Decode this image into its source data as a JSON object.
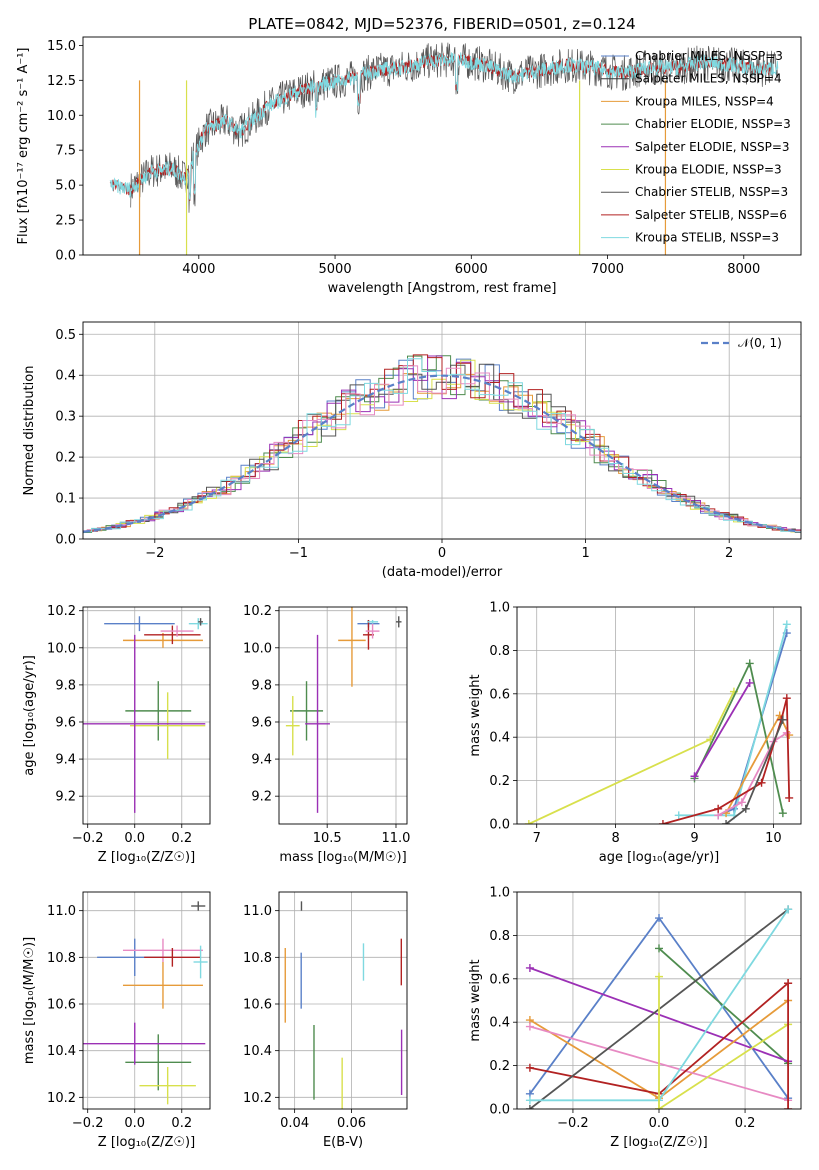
{
  "chart_data": [
    {
      "id": "spectrum",
      "type": "line",
      "title": "PLATE=0842, MJD=52376, FIBERID=0501, z=0.124",
      "xlabel": "wavelength [Angstrom, rest frame]",
      "ylabel": "Flux [fλ10⁻¹⁷ erg cm⁻² s⁻¹ A⁻¹]",
      "xlim": [
        3150,
        8420
      ],
      "ylim": [
        0,
        15.6
      ],
      "xticks": [
        "4000",
        "5000",
        "6000",
        "7000",
        "8000"
      ],
      "yticks": [
        "0.0",
        "2.5",
        "5.0",
        "7.5",
        "10.0",
        "12.5",
        "15.0"
      ],
      "legend_position": "upper-right",
      "legend": [
        {
          "label": "Chabrier MILES, NSSP=3",
          "color": "#5a80c8"
        },
        {
          "label": "Salpeter MILES, NSSP=4",
          "color": "#3a3a3a"
        },
        {
          "label": "Kroupa MILES, NSSP=4",
          "color": "#e69b3a"
        },
        {
          "label": "Chabrier ELODIE, NSSP=3",
          "color": "#4f8c4f"
        },
        {
          "label": "Salpeter ELODIE, NSSP=3",
          "color": "#9b30b5"
        },
        {
          "label": "Kroupa ELODIE, NSSP=3",
          "color": "#d8e04c"
        },
        {
          "label": "Chabrier STELIB, NSSP=3",
          "color": "#555555"
        },
        {
          "label": "Salpeter STELIB, NSSP=6",
          "color": "#b22222"
        },
        {
          "label": "Kroupa STELIB, NSSP=3",
          "color": "#7fd9e0"
        }
      ],
      "continuum": [
        [
          3350,
          5.0
        ],
        [
          3500,
          4.7
        ],
        [
          3650,
          6.0
        ],
        [
          3800,
          6.2
        ],
        [
          3900,
          5.5
        ],
        [
          3950,
          6.8
        ],
        [
          4050,
          9.0
        ],
        [
          4200,
          9.6
        ],
        [
          4300,
          8.8
        ],
        [
          4500,
          10.6
        ],
        [
          4700,
          11.6
        ],
        [
          4900,
          12.2
        ],
        [
          5100,
          12.6
        ],
        [
          5300,
          13.2
        ],
        [
          5500,
          13.4
        ],
        [
          5700,
          13.9
        ],
        [
          5900,
          14.0
        ],
        [
          6100,
          13.6
        ],
        [
          6300,
          12.8
        ],
        [
          6500,
          13.2
        ],
        [
          6700,
          13.6
        ],
        [
          6900,
          13.4
        ],
        [
          7100,
          13.0
        ],
        [
          7300,
          13.4
        ],
        [
          7500,
          13.4
        ],
        [
          7700,
          13.8
        ],
        [
          7900,
          13.6
        ],
        [
          8100,
          13.3
        ],
        [
          8250,
          13.4
        ]
      ],
      "series": [
        {
          "color": "#555555",
          "x_range": [
            3500,
            8250
          ],
          "noise": 1.3,
          "width": 0.7
        },
        {
          "color": "#b22222",
          "x_range": [
            3350,
            8200
          ],
          "noise": 0.45,
          "width": 0.9
        },
        {
          "color": "#7fd9e0",
          "x_range": [
            3350,
            8250
          ],
          "noise": 0.55,
          "width": 0.9
        }
      ]
    },
    {
      "id": "residuals",
      "type": "histogram",
      "xlabel": "(data-model)/error",
      "ylabel": "Normed distribution",
      "xlim": [
        -2.5,
        2.5
      ],
      "ylim": [
        0,
        0.53
      ],
      "xticks": [
        "−2",
        "−1",
        "0",
        "1",
        "2"
      ],
      "yticks": [
        "0.0",
        "0.1",
        "0.2",
        "0.3",
        "0.4",
        "0.5"
      ],
      "legend": [
        {
          "label": "𝒩(0, 1)",
          "color": "#5a80c8"
        }
      ],
      "bin_width": 0.1,
      "series_colors": [
        "#5a80c8",
        "#e69b3a",
        "#4f8c4f",
        "#9b30b5",
        "#d8e04c",
        "#555555",
        "#b22222",
        "#e78ac3",
        "#7fd9e0"
      ]
    },
    {
      "id": "age-vs-z",
      "type": "errorbar",
      "xlabel": "Z [log₁₀(Z/Z☉)]",
      "ylabel": "age [log₁₀(age/yr)]",
      "xlim": [
        -0.22,
        0.32
      ],
      "ylim": [
        9.05,
        10.22
      ],
      "xticks": [
        "−0.2",
        "0.0",
        "0.2"
      ],
      "yticks": [
        "9.2",
        "9.4",
        "9.6",
        "9.8",
        "10.0",
        "10.2"
      ],
      "points": [
        {
          "x": 0.02,
          "y": 10.13,
          "xerr": 0.15,
          "yerr": 0.04,
          "color": "#5a80c8"
        },
        {
          "x": 0.12,
          "y": 10.04,
          "xerr": 0.17,
          "yerr": 0.04,
          "color": "#e69b3a"
        },
        {
          "x": 0.16,
          "y": 10.07,
          "xerr": 0.12,
          "yerr": 0.05,
          "color": "#b22222"
        },
        {
          "x": 0.18,
          "y": 10.09,
          "xerr": 0.07,
          "yerr": 0.03,
          "color": "#e78ac3"
        },
        {
          "x": 0.27,
          "y": 10.13,
          "xerr": 0.04,
          "yerr": 0.03,
          "color": "#7fd9e0"
        },
        {
          "x": 0.28,
          "y": 10.14,
          "xerr": 0.01,
          "yerr": 0.02,
          "color": "#555555"
        },
        {
          "x": 0.1,
          "y": 9.66,
          "xerr": 0.14,
          "yerr": 0.16,
          "color": "#4f8c4f"
        },
        {
          "x": 0.14,
          "y": 9.58,
          "xerr": 0.16,
          "yerr": 0.18,
          "color": "#d8e04c"
        },
        {
          "x": 0.0,
          "y": 9.59,
          "xerr": 0.3,
          "yerr": 0.48,
          "color": "#9b30b5"
        }
      ]
    },
    {
      "id": "age-vs-mass",
      "type": "errorbar",
      "xlabel": "mass [log₁₀(M/M☉)]",
      "ylabel": "",
      "xlim": [
        10.15,
        11.08
      ],
      "ylim": [
        9.05,
        10.22
      ],
      "xticks": [
        "10.5",
        "11.0"
      ],
      "yticks": [
        "9.2",
        "9.4",
        "9.6",
        "9.8",
        "10.0",
        "10.2"
      ],
      "points": [
        {
          "x": 10.8,
          "y": 10.13,
          "xerr": 0.08,
          "yerr": 0.02,
          "color": "#5a80c8"
        },
        {
          "x": 10.68,
          "y": 10.04,
          "xerr": 0.1,
          "yerr": 0.25,
          "color": "#e69b3a"
        },
        {
          "x": 10.8,
          "y": 10.07,
          "xerr": 0.04,
          "yerr": 0.08,
          "color": "#b22222"
        },
        {
          "x": 10.83,
          "y": 10.09,
          "xerr": 0.05,
          "yerr": 0.04,
          "color": "#e78ac3"
        },
        {
          "x": 10.83,
          "y": 10.14,
          "xerr": 0.04,
          "yerr": 0.01,
          "color": "#7fd9e0"
        },
        {
          "x": 11.02,
          "y": 10.14,
          "xerr": 0.02,
          "yerr": 0.03,
          "color": "#555555"
        },
        {
          "x": 10.35,
          "y": 9.66,
          "xerr": 0.12,
          "yerr": 0.16,
          "color": "#4f8c4f"
        },
        {
          "x": 10.25,
          "y": 9.58,
          "xerr": 0.05,
          "yerr": 0.16,
          "color": "#d8e04c"
        },
        {
          "x": 10.43,
          "y": 9.59,
          "xerr": 0.09,
          "yerr": 0.48,
          "color": "#9b30b5"
        }
      ]
    },
    {
      "id": "mass-weight-vs-age",
      "type": "line",
      "xlabel": "age [log₁₀(age/yr)]",
      "ylabel": "mass weight",
      "xlim": [
        6.75,
        10.35
      ],
      "ylim": [
        0,
        1.0
      ],
      "xticks": [
        "7",
        "8",
        "9",
        "10"
      ],
      "yticks": [
        "0.0",
        "0.2",
        "0.4",
        "0.6",
        "0.8",
        "1.0"
      ],
      "series": [
        {
          "color": "#d8e04c",
          "x": [
            6.9,
            9.2,
            9.5
          ],
          "y": [
            0.0,
            0.39,
            0.61
          ]
        },
        {
          "color": "#5a80c8",
          "x": [
            9.3,
            9.5,
            10.17
          ],
          "y": [
            0.04,
            0.07,
            0.88
          ]
        },
        {
          "color": "#7fd9e0",
          "x": [
            8.8,
            9.5,
            10.17
          ],
          "y": [
            0.04,
            0.04,
            0.92
          ]
        },
        {
          "color": "#4f8c4f",
          "x": [
            9.0,
            9.7,
            10.12
          ],
          "y": [
            0.21,
            0.74,
            0.05
          ]
        },
        {
          "color": "#9b30b5",
          "x": [
            9.0,
            9.7
          ],
          "y": [
            0.22,
            0.65
          ]
        },
        {
          "color": "#e69b3a",
          "x": [
            9.4,
            10.08,
            10.2
          ],
          "y": [
            0.05,
            0.5,
            0.41
          ]
        },
        {
          "color": "#e78ac3",
          "x": [
            9.3,
            9.6,
            10.0,
            10.17
          ],
          "y": [
            0.04,
            0.1,
            0.38,
            0.42
          ]
        },
        {
          "color": "#b22222",
          "x": [
            8.6,
            9.3,
            9.85,
            10.1,
            10.17,
            10.2
          ],
          "y": [
            0.0,
            0.07,
            0.19,
            0.48,
            0.58,
            0.12
          ]
        },
        {
          "color": "#555555",
          "x": [
            9.4,
            9.65,
            10.12
          ],
          "y": [
            0.0,
            0.07,
            0.48
          ]
        }
      ]
    },
    {
      "id": "mass-vs-z",
      "type": "errorbar",
      "xlabel": "Z [log₁₀(Z/Z☉)]",
      "ylabel": "mass [log₁₀(M/M☉)]",
      "xlim": [
        -0.22,
        0.32
      ],
      "ylim": [
        10.15,
        11.08
      ],
      "xticks": [
        "−0.2",
        "0.0",
        "0.2"
      ],
      "yticks": [
        "10.2",
        "10.4",
        "10.6",
        "10.8",
        "11.0"
      ],
      "points": [
        {
          "x": -0.0,
          "y": 10.8,
          "xerr": 0.16,
          "yerr": 0.08,
          "color": "#5a80c8"
        },
        {
          "x": 0.12,
          "y": 10.68,
          "xerr": 0.17,
          "yerr": 0.1,
          "color": "#e69b3a"
        },
        {
          "x": 0.12,
          "y": 10.83,
          "xerr": 0.17,
          "yerr": 0.05,
          "color": "#e78ac3"
        },
        {
          "x": 0.16,
          "y": 10.8,
          "xerr": 0.12,
          "yerr": 0.04,
          "color": "#b22222"
        },
        {
          "x": 0.28,
          "y": 10.78,
          "xerr": 0.03,
          "yerr": 0.07,
          "color": "#7fd9e0"
        },
        {
          "x": 0.27,
          "y": 11.02,
          "xerr": 0.03,
          "yerr": 0.02,
          "color": "#555555"
        },
        {
          "x": 0.1,
          "y": 10.35,
          "xerr": 0.14,
          "yerr": 0.12,
          "color": "#4f8c4f"
        },
        {
          "x": 0.14,
          "y": 10.25,
          "xerr": 0.12,
          "yerr": 0.08,
          "color": "#d8e04c"
        },
        {
          "x": 0.0,
          "y": 10.43,
          "xerr": 0.3,
          "yerr": 0.09,
          "color": "#9b30b5"
        }
      ]
    },
    {
      "id": "mass-vs-ebv",
      "type": "errorbar",
      "xlabel": "E(B-V)",
      "ylabel": "",
      "xlim": [
        0.0345,
        0.0795
      ],
      "ylim": [
        10.15,
        11.08
      ],
      "xticks": [
        "0.04",
        "0.06"
      ],
      "yticks": [
        "10.2",
        "10.4",
        "10.6",
        "10.8",
        "11.0"
      ],
      "points": [
        {
          "x": 0.0367,
          "y": 10.68,
          "xerr": 0.0,
          "yerr": 0.16,
          "color": "#e69b3a"
        },
        {
          "x": 0.0423,
          "y": 10.7,
          "xerr": 0.0,
          "yerr": 0.12,
          "color": "#5a80c8"
        },
        {
          "x": 0.0424,
          "y": 11.02,
          "xerr": 0.0,
          "yerr": 0.02,
          "color": "#555555"
        },
        {
          "x": 0.0468,
          "y": 10.35,
          "xerr": 0.0,
          "yerr": 0.16,
          "color": "#4f8c4f"
        },
        {
          "x": 0.0567,
          "y": 10.25,
          "xerr": 0.0,
          "yerr": 0.12,
          "color": "#d8e04c"
        },
        {
          "x": 0.0642,
          "y": 10.78,
          "xerr": 0.0,
          "yerr": 0.08,
          "color": "#7fd9e0"
        },
        {
          "x": 0.0775,
          "y": 10.78,
          "xerr": 0.0,
          "yerr": 0.1,
          "color": "#b22222"
        },
        {
          "x": 0.0776,
          "y": 10.35,
          "xerr": 0.0,
          "yerr": 0.14,
          "color": "#9b30b5"
        }
      ]
    },
    {
      "id": "mass-weight-vs-z",
      "type": "line",
      "xlabel": "Z [log₁₀(Z/Z☉)]",
      "ylabel": "mass weight",
      "xlim": [
        -0.33,
        0.33
      ],
      "ylim": [
        0,
        1.0
      ],
      "xticks": [
        "−0.2",
        "0.0",
        "0.2"
      ],
      "yticks": [
        "0.0",
        "0.2",
        "0.4",
        "0.6",
        "0.8",
        "1.0"
      ],
      "series": [
        {
          "color": "#5a80c8",
          "x": [
            -0.3,
            0.0,
            0.3
          ],
          "y": [
            0.07,
            0.88,
            0.05
          ]
        },
        {
          "color": "#4f8c4f",
          "x": [
            0.0,
            0.3
          ],
          "y": [
            0.74,
            0.21
          ]
        },
        {
          "color": "#9b30b5",
          "x": [
            -0.3,
            0.3
          ],
          "y": [
            0.65,
            0.22
          ]
        },
        {
          "color": "#e69b3a",
          "x": [
            -0.3,
            0.0,
            0.3
          ],
          "y": [
            0.41,
            0.05,
            0.5
          ]
        },
        {
          "color": "#e78ac3",
          "x": [
            -0.3,
            0.3
          ],
          "y": [
            0.38,
            0.04
          ]
        },
        {
          "color": "#b22222",
          "x": [
            -0.3,
            0.0,
            0.3
          ],
          "y": [
            0.19,
            0.07,
            0.58
          ]
        },
        {
          "color": "#555555",
          "x": [
            -0.3,
            0.3
          ],
          "y": [
            0.0,
            0.92
          ]
        },
        {
          "color": "#7fd9e0",
          "x": [
            -0.3,
            0.0,
            0.3
          ],
          "y": [
            0.04,
            0.04,
            0.92
          ]
        },
        {
          "color": "#d8e04c",
          "x": [
            0.0,
            0.3
          ],
          "y": [
            0.0,
            0.39
          ]
        },
        {
          "color": "#d8e04c",
          "x": [
            0.0,
            0.0
          ],
          "y": [
            0.0,
            0.61
          ]
        },
        {
          "color": "#b22222",
          "x": [
            0.3,
            0.3
          ],
          "y": [
            0.0,
            0.58
          ]
        }
      ]
    }
  ]
}
